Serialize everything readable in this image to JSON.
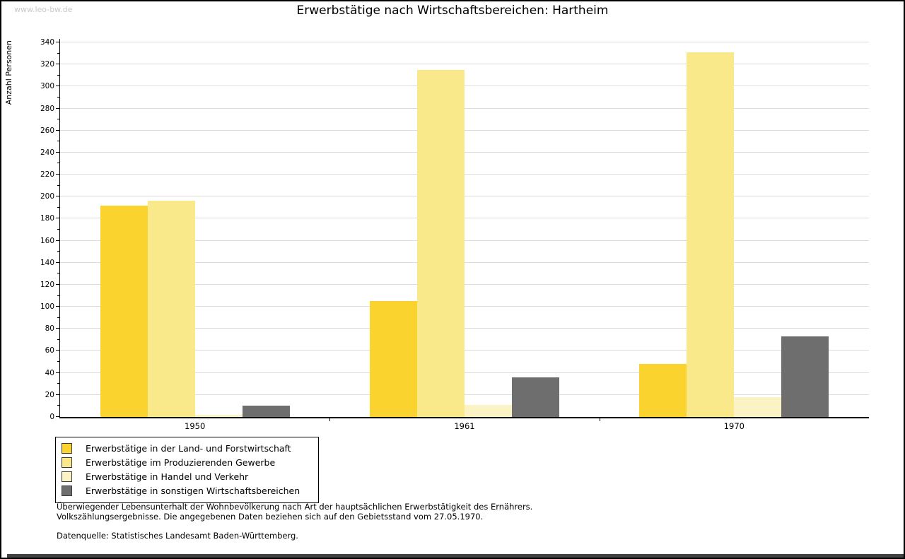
{
  "watermark": "www.leo-bw.de",
  "chart_data": {
    "type": "bar",
    "title": "Erwerbstätige nach Wirtschaftsbereichen: Hartheim",
    "ylabel": "Anzahl Personen",
    "xlabel": "",
    "categories": [
      "1950",
      "1961",
      "1970"
    ],
    "series": [
      {
        "name": "Erwerbstätige in der Land- und Forstwirtschaft",
        "color": "#fbd32e",
        "values": [
          192,
          105,
          48
        ]
      },
      {
        "name": "Erwerbstätige im Produzierenden Gewerbe",
        "color": "#fae98b",
        "values": [
          196,
          315,
          331
        ]
      },
      {
        "name": "Erwerbstätige in Handel und Verkehr",
        "color": "#fbf3c4",
        "values": [
          2,
          11,
          18
        ]
      },
      {
        "name": "Erwerbstätige in sonstigen Wirtschaftsbereichen",
        "color": "#6e6e6e",
        "values": [
          10,
          36,
          73
        ]
      }
    ],
    "ylim": [
      0,
      340
    ],
    "ytick_step": 20,
    "ytick_minor_step": 10,
    "grid": true,
    "legend_position": "bottom-left",
    "grid_color": "#dcdcdc"
  },
  "footer": {
    "note1": "Überwiegender Lebensunterhalt der Wohnbevölkerung nach Art der hauptsächlichen Erwerbstätigkeit des Ernährers.",
    "note2": "Volkszählungsergebnisse. Die angegebenen Daten beziehen sich auf den Gebietsstand vom 27.05.1970.",
    "source": "Datenquelle: Statistisches Landesamt Baden-Württemberg."
  }
}
